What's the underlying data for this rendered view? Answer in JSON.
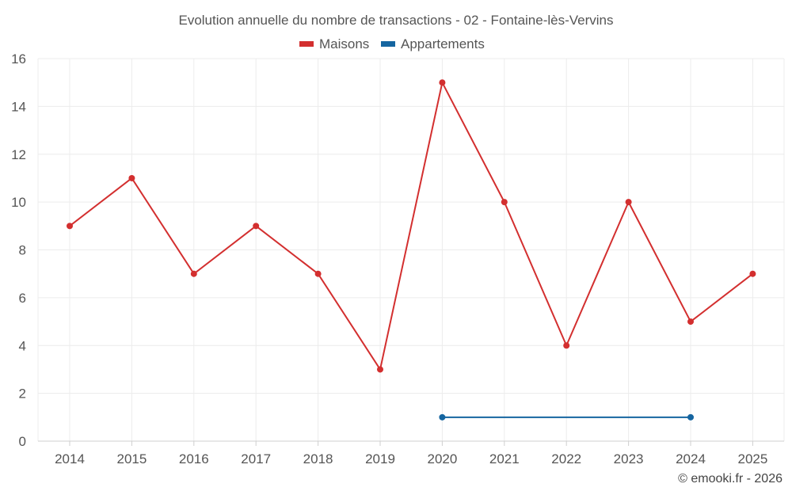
{
  "chart_data": {
    "type": "line",
    "title": "Evolution annuelle du nombre de transactions - 02 - Fontaine-lès-Vervins",
    "x": [
      "2014",
      "2015",
      "2016",
      "2017",
      "2018",
      "2019",
      "2020",
      "2021",
      "2022",
      "2023",
      "2024",
      "2025"
    ],
    "series": [
      {
        "name": "Maisons",
        "color": "#d32f2f",
        "values": [
          9,
          11,
          7,
          9,
          7,
          3,
          15,
          10,
          4,
          10,
          5,
          7
        ]
      },
      {
        "name": "Appartements",
        "color": "#1565a0",
        "values": [
          null,
          null,
          null,
          null,
          null,
          null,
          1,
          null,
          null,
          null,
          1,
          null
        ]
      }
    ],
    "ylim": [
      0,
      16
    ],
    "yticks": [
      "0",
      "2",
      "4",
      "6",
      "8",
      "10",
      "12",
      "14",
      "16"
    ],
    "grid": true,
    "legend_position": "top-center"
  },
  "credit": "© emooki.fr - 2026"
}
